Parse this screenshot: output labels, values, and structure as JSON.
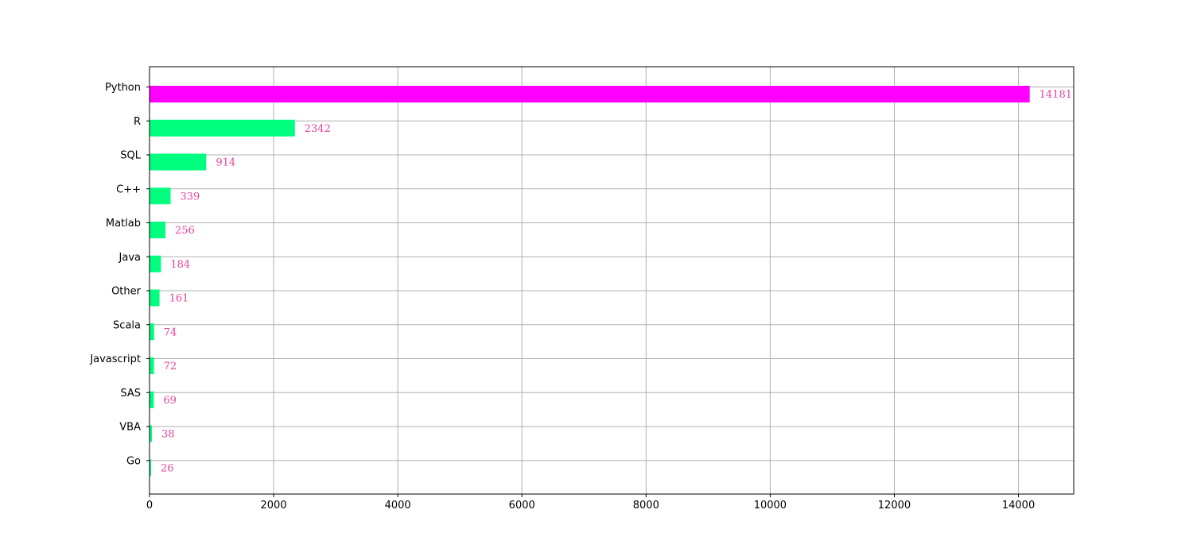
{
  "chart_data": {
    "type": "bar",
    "orientation": "horizontal",
    "categories": [
      "Python",
      "R",
      "SQL",
      "C++",
      "Matlab",
      "Java",
      "Other",
      "Scala",
      "Javascript",
      "SAS",
      "VBA",
      "Go"
    ],
    "values": [
      14181,
      2342,
      914,
      339,
      256,
      184,
      161,
      74,
      72,
      69,
      38,
      26
    ],
    "data_labels": [
      "14181",
      "2342",
      "914",
      "339",
      "256",
      "184",
      "161",
      "74",
      "72",
      "69",
      "38",
      "26"
    ],
    "x_ticks": [
      "0",
      "2000",
      "4000",
      "6000",
      "8000",
      "10000",
      "12000",
      "14000"
    ],
    "xlim": [
      0,
      14890
    ],
    "grid": true,
    "title": "",
    "xlabel": "",
    "ylabel": "",
    "colors": {
      "highlight_bar": "#ff00ff",
      "bar": "#00ff7f",
      "data_label": "#e8439b",
      "grid": "#b0b0b0"
    }
  }
}
